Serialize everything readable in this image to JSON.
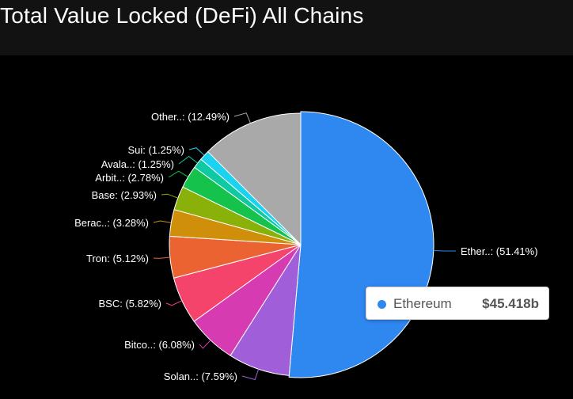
{
  "header": {
    "title": "Total Value Locked (DeFi) All Chains"
  },
  "tooltip": {
    "name": "Ethereum",
    "value": "$45.418b",
    "color": "#2f87f0"
  },
  "chart_data": {
    "type": "pie",
    "start_angle_deg": 0,
    "direction": "clockwise",
    "slices": [
      {
        "label": "Ether..: (51.41%)",
        "value": 51.41,
        "color": "#2f87f0",
        "side": "right"
      },
      {
        "label": "Solan..: (7.59%)",
        "value": 7.59,
        "color": "#a05fd8",
        "side": "left"
      },
      {
        "label": "Bitco..: (6.08%)",
        "value": 6.08,
        "color": "#d63bb2",
        "side": "left"
      },
      {
        "label": "BSC: (5.82%)",
        "value": 5.82,
        "color": "#f5446c",
        "side": "left"
      },
      {
        "label": "Tron: (5.12%)",
        "value": 5.12,
        "color": "#ea6331",
        "side": "left"
      },
      {
        "label": "Berac..: (3.28%)",
        "value": 3.28,
        "color": "#cf8f0b",
        "side": "left"
      },
      {
        "label": "Base: (2.93%)",
        "value": 2.93,
        "color": "#8ab00a",
        "side": "left"
      },
      {
        "label": "Arbit..: (2.78%)",
        "value": 2.78,
        "color": "#14c24c",
        "side": "left"
      },
      {
        "label": "Avala..: (1.25%)",
        "value": 1.25,
        "color": "#0fc9a3",
        "side": "left"
      },
      {
        "label": "Sui: (1.25%)",
        "value": 1.25,
        "color": "#1dd2f0",
        "side": "left"
      },
      {
        "label": "Other..: (12.49%)",
        "value": 12.49,
        "color": "#a9a9a9",
        "side": "left"
      }
    ]
  }
}
